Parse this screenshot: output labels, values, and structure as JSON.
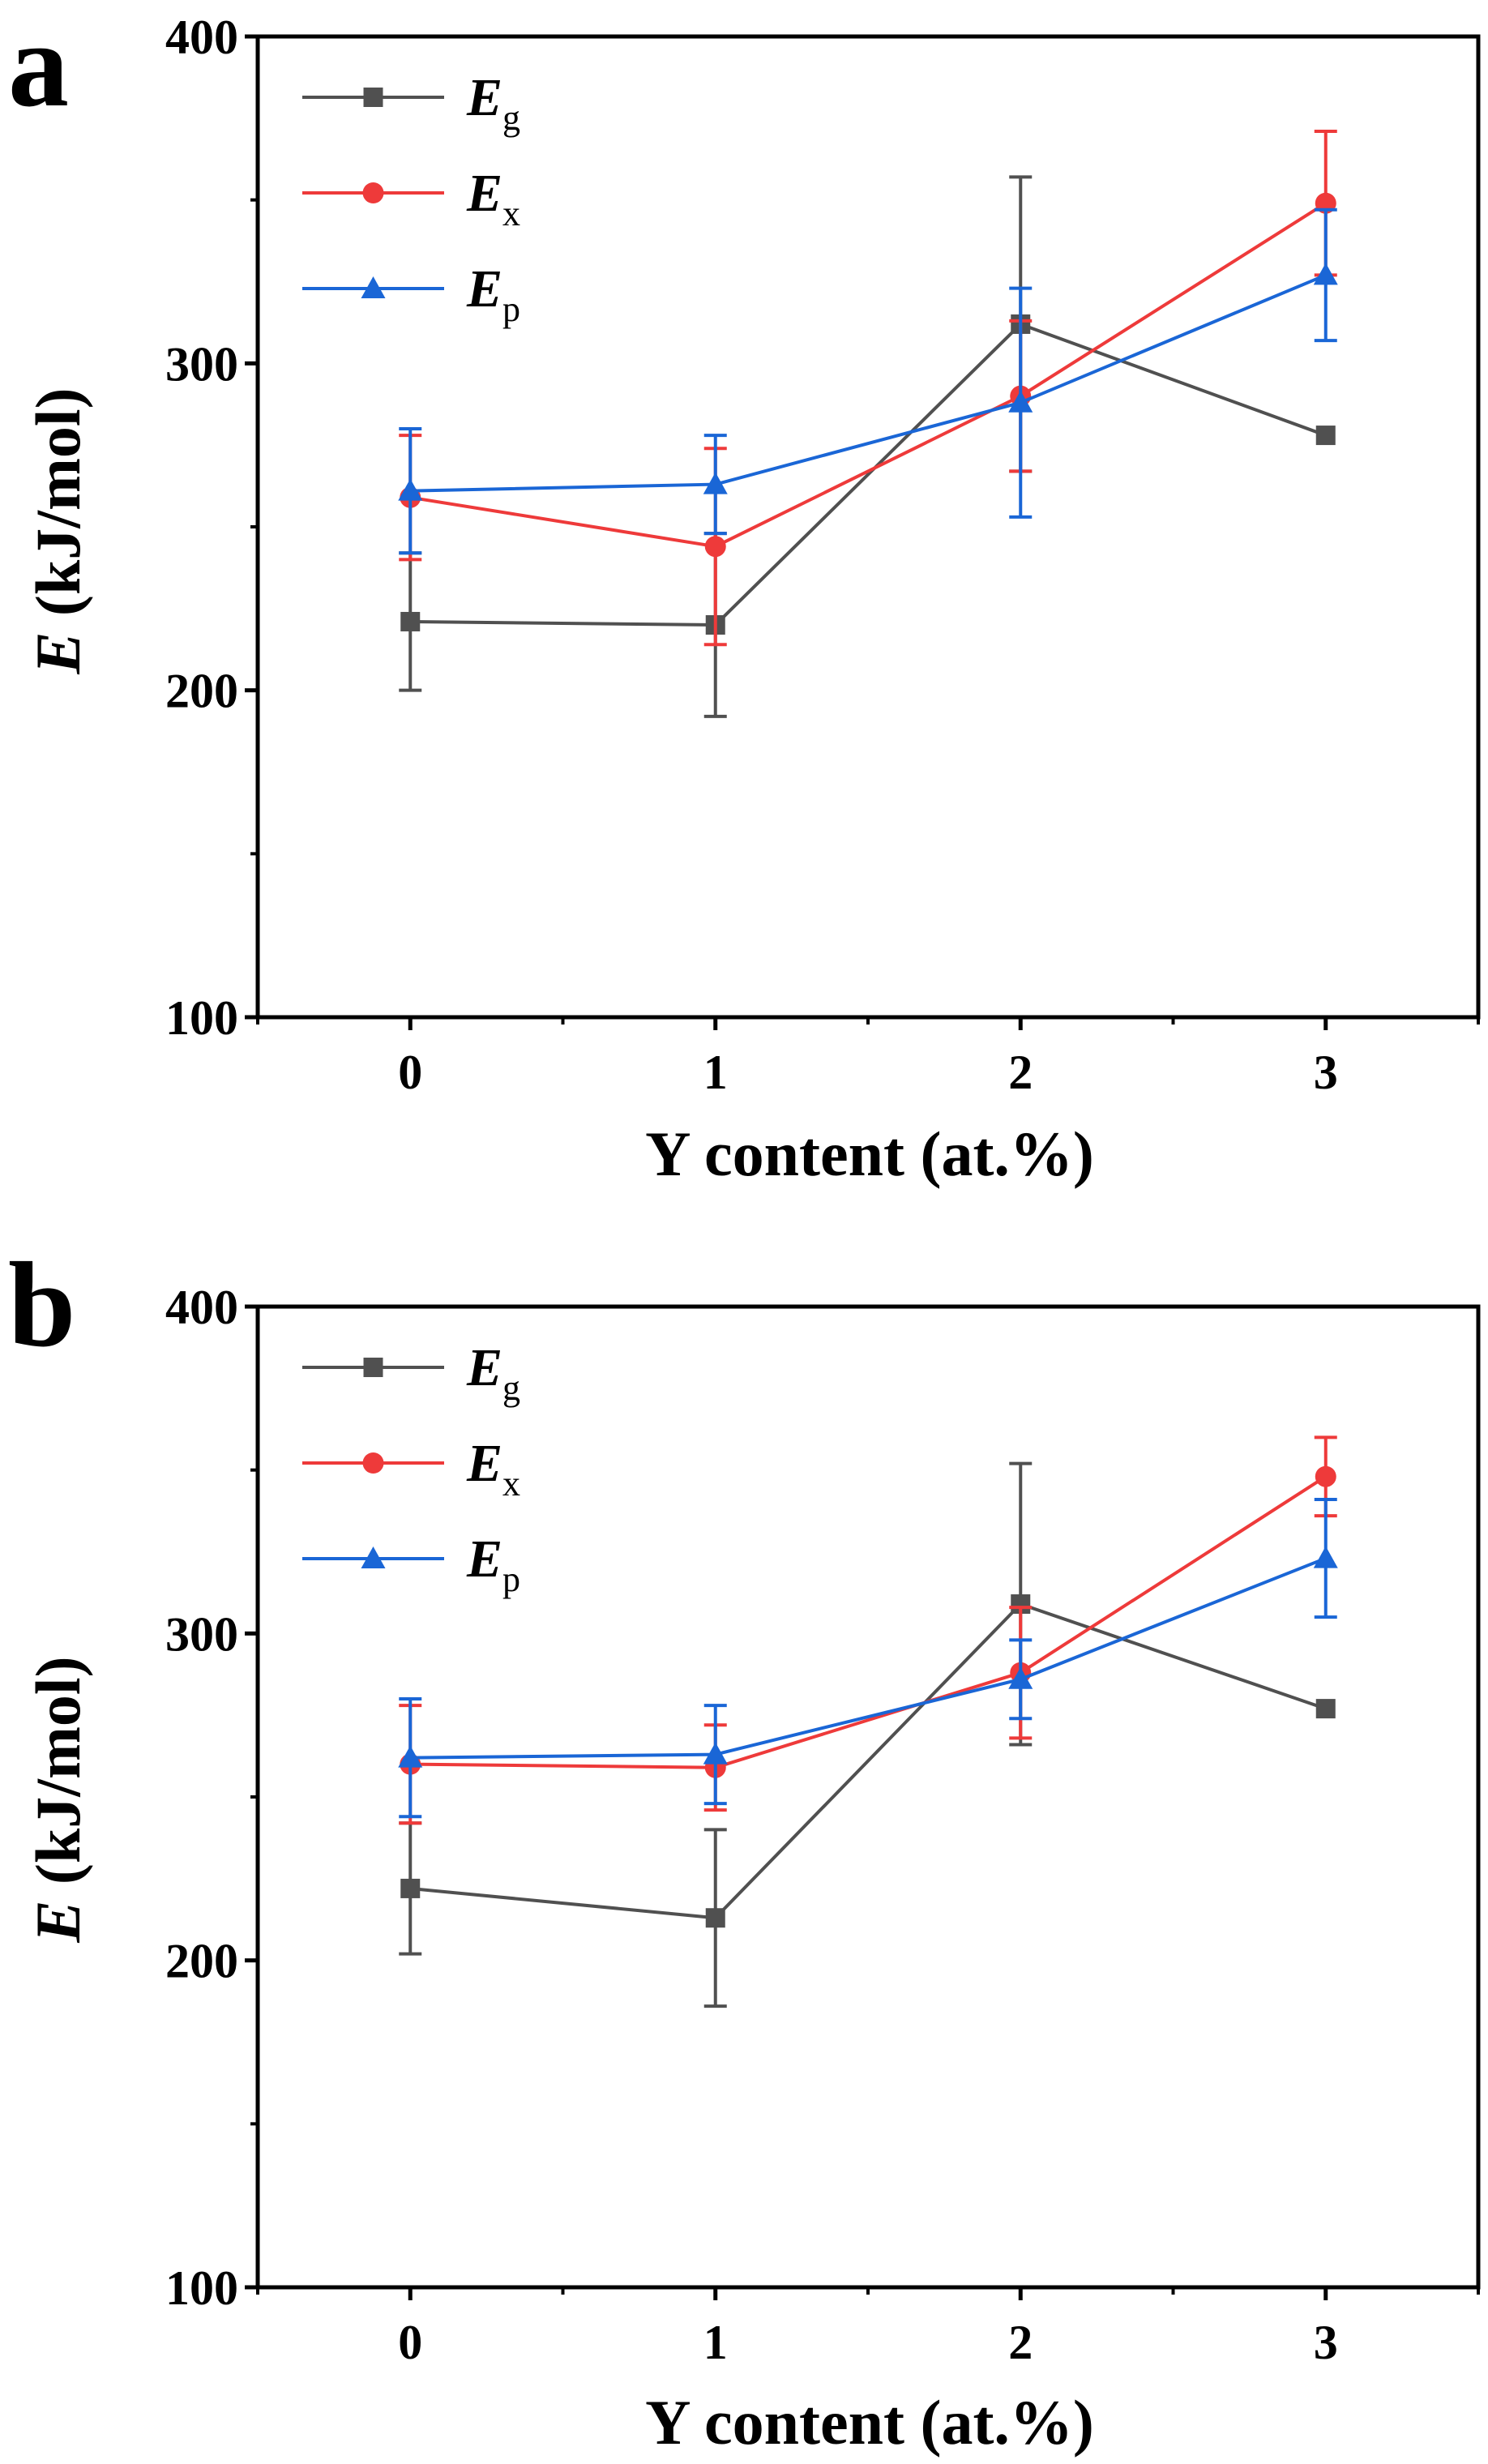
{
  "chart_data": [
    {
      "panel_label": "a",
      "type": "line",
      "xlabel": "Y content (at.%)",
      "ylabel_symbol": "E",
      "ylabel_unit": " (kJ/mol)",
      "categories": [
        "0",
        "1",
        "2",
        "3"
      ],
      "x": [
        0,
        1,
        2,
        3
      ],
      "xlim": [
        -0.5,
        3.5
      ],
      "ylim": [
        100,
        400
      ],
      "yticks": [
        100,
        200,
        300,
        400
      ],
      "ytick_labels": [
        "100",
        "200",
        "300",
        "400"
      ],
      "legend_position": "top-left",
      "series": [
        {
          "name": "E",
          "subscript": "g",
          "color": "#505050",
          "marker": "square",
          "values": [
            221,
            220,
            312,
            278
          ],
          "errors": [
            21,
            28,
            45,
            0
          ]
        },
        {
          "name": "E",
          "subscript": "x",
          "color": "#ee3a3a",
          "marker": "circle",
          "values": [
            259,
            244,
            290,
            349
          ],
          "errors": [
            19,
            30,
            23,
            22
          ]
        },
        {
          "name": "E",
          "subscript": "p",
          "color": "#1a66d6",
          "marker": "triangle",
          "values": [
            261,
            263,
            288,
            327
          ],
          "errors": [
            19,
            15,
            35,
            20
          ]
        }
      ]
    },
    {
      "panel_label": "b",
      "type": "line",
      "xlabel": "Y content (at.%)",
      "ylabel_symbol": "E",
      "ylabel_unit": " (kJ/mol)",
      "categories": [
        "0",
        "1",
        "2",
        "3"
      ],
      "x": [
        0,
        1,
        2,
        3
      ],
      "xlim": [
        -0.5,
        3.5
      ],
      "ylim": [
        100,
        400
      ],
      "yticks": [
        100,
        200,
        300,
        400
      ],
      "ytick_labels": [
        "100",
        "200",
        "300",
        "400"
      ],
      "legend_position": "top-left",
      "series": [
        {
          "name": "E",
          "subscript": "g",
          "color": "#505050",
          "marker": "square",
          "values": [
            222,
            213,
            309,
            277
          ],
          "errors": [
            20,
            27,
            43,
            0
          ]
        },
        {
          "name": "E",
          "subscript": "x",
          "color": "#ee3a3a",
          "marker": "circle",
          "values": [
            260,
            259,
            288,
            348
          ],
          "errors": [
            18,
            13,
            20,
            12
          ]
        },
        {
          "name": "E",
          "subscript": "p",
          "color": "#1a66d6",
          "marker": "triangle",
          "values": [
            262,
            263,
            286,
            323
          ],
          "errors": [
            18,
            15,
            12,
            18
          ]
        }
      ]
    }
  ]
}
